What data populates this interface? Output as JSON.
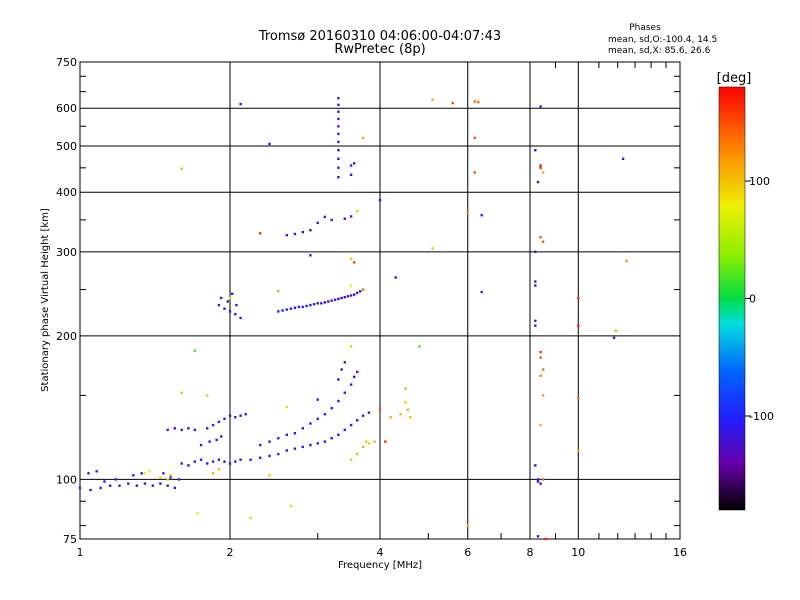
{
  "chart_data": {
    "type": "scatter",
    "title": "Tromsø 20160310 04:06:00-04:07:43",
    "subtitle": "RwPretec (8p)",
    "xlabel": "Frequency [MHz]",
    "ylabel": "Stationary phase Virtual Height [km]",
    "x_scale": "log",
    "y_scale": "log",
    "xlim": [
      1,
      16
    ],
    "ylim": [
      75,
      750
    ],
    "x_ticks": [
      1,
      2,
      4,
      6,
      8,
      10,
      16
    ],
    "y_ticks": [
      75,
      100,
      200,
      300,
      400,
      500,
      600,
      750
    ],
    "grid": true,
    "info": {
      "header": "Phases",
      "line1": "mean, sd,O:-100.4, 14.5",
      "line2": "mean, sd,X:  85.6, 26.6"
    },
    "colorbar": {
      "label": "[deg]",
      "range": [
        -180,
        180
      ],
      "ticks": [
        100,
        0,
        -100
      ]
    },
    "series": [
      {
        "values": [
          [
            1.0,
            96,
            -110
          ],
          [
            1.05,
            95,
            -110
          ],
          [
            1.1,
            96,
            -105
          ],
          [
            1.15,
            97,
            -110
          ],
          [
            1.2,
            97,
            -112
          ],
          [
            1.25,
            98,
            -108
          ],
          [
            1.3,
            97,
            -110
          ],
          [
            1.35,
            98,
            -105
          ],
          [
            1.4,
            97,
            -110
          ],
          [
            1.45,
            98,
            -108
          ],
          [
            1.5,
            97,
            -110
          ],
          [
            1.55,
            96,
            -112
          ],
          [
            1.04,
            103,
            -100
          ],
          [
            1.08,
            104,
            -95
          ],
          [
            1.12,
            99,
            -110
          ],
          [
            1.18,
            100,
            -105
          ],
          [
            1.28,
            102,
            -100
          ],
          [
            1.33,
            103,
            -105
          ],
          [
            1.47,
            103,
            -100
          ],
          [
            1.52,
            101,
            -110
          ],
          [
            1.58,
            100,
            -105
          ],
          [
            1.5,
            127,
            -105
          ],
          [
            1.55,
            128,
            -100
          ],
          [
            1.6,
            127,
            -110
          ],
          [
            1.65,
            128,
            -105
          ],
          [
            1.7,
            127,
            -108
          ],
          [
            1.6,
            108,
            -105
          ],
          [
            1.65,
            107,
            -110
          ],
          [
            1.7,
            109,
            -105
          ],
          [
            1.75,
            110,
            -108
          ],
          [
            1.8,
            108,
            -110
          ],
          [
            1.85,
            109,
            -105
          ],
          [
            1.9,
            110,
            -108
          ],
          [
            1.95,
            109,
            -110
          ],
          [
            2.0,
            108,
            -105
          ],
          [
            2.05,
            109,
            -110
          ],
          [
            2.1,
            110,
            -108
          ],
          [
            2.2,
            110,
            -105
          ],
          [
            2.3,
            111,
            -108
          ],
          [
            2.4,
            112,
            -110
          ],
          [
            2.5,
            113,
            -105
          ],
          [
            2.6,
            115,
            -110
          ],
          [
            2.7,
            116,
            -108
          ],
          [
            2.8,
            117,
            -105
          ],
          [
            2.9,
            118,
            -110
          ],
          [
            3.0,
            119,
            -108
          ],
          [
            3.1,
            120,
            -105
          ],
          [
            3.2,
            122,
            -110
          ],
          [
            3.3,
            124,
            -108
          ],
          [
            3.4,
            127,
            -105
          ],
          [
            3.5,
            130,
            -110
          ],
          [
            3.6,
            133,
            -108
          ],
          [
            3.7,
            136,
            -105
          ],
          [
            3.8,
            138,
            -110
          ],
          [
            1.8,
            128,
            -110
          ],
          [
            1.85,
            130,
            -108
          ],
          [
            1.9,
            132,
            -105
          ],
          [
            1.95,
            134,
            -110
          ],
          [
            2.0,
            136,
            -108
          ],
          [
            2.05,
            135,
            -105
          ],
          [
            2.1,
            136,
            -110
          ],
          [
            2.15,
            137,
            -108
          ],
          [
            1.75,
            118,
            -105
          ],
          [
            1.82,
            120,
            -110
          ],
          [
            1.88,
            121,
            -108
          ],
          [
            1.92,
            123,
            -105
          ],
          [
            2.3,
            118,
            -110
          ],
          [
            2.4,
            120,
            -108
          ],
          [
            2.5,
            122,
            -105
          ],
          [
            2.6,
            124,
            -110
          ],
          [
            2.7,
            125,
            -108
          ],
          [
            2.8,
            128,
            -105
          ],
          [
            2.9,
            131,
            -110
          ],
          [
            3.0,
            134,
            -108
          ],
          [
            3.1,
            137,
            -105
          ],
          [
            3.2,
            141,
            -110
          ],
          [
            3.3,
            146,
            -108
          ],
          [
            3.4,
            152,
            -105
          ],
          [
            3.5,
            158,
            -110
          ],
          [
            3.55,
            164,
            -108
          ],
          [
            3.6,
            168,
            -105
          ],
          [
            3.3,
            162,
            -110
          ],
          [
            3.35,
            170,
            -108
          ],
          [
            3.4,
            176,
            -105
          ],
          [
            3.0,
            147,
            -110
          ],
          [
            2.5,
            225,
            -95
          ],
          [
            2.55,
            226,
            -100
          ],
          [
            2.6,
            227,
            -90
          ],
          [
            2.65,
            228,
            -95
          ],
          [
            2.7,
            229,
            -100
          ],
          [
            2.75,
            230,
            -95
          ],
          [
            2.8,
            230,
            -90
          ],
          [
            2.85,
            231,
            -95
          ],
          [
            2.9,
            232,
            -100
          ],
          [
            2.95,
            233,
            -95
          ],
          [
            3.0,
            234,
            -130
          ],
          [
            3.05,
            234,
            -120
          ],
          [
            3.1,
            235,
            -125
          ],
          [
            3.15,
            236,
            -130
          ],
          [
            3.2,
            237,
            -120
          ],
          [
            3.25,
            238,
            -125
          ],
          [
            3.3,
            239,
            -130
          ],
          [
            3.35,
            240,
            -120
          ],
          [
            3.4,
            241,
            -125
          ],
          [
            3.45,
            242,
            -130
          ],
          [
            3.5,
            243,
            -120
          ],
          [
            3.55,
            244,
            -125
          ],
          [
            3.6,
            246,
            -130
          ],
          [
            3.65,
            248,
            -120
          ],
          [
            3.7,
            250,
            -125
          ],
          [
            1.9,
            232,
            -110
          ],
          [
            1.95,
            228,
            -105
          ],
          [
            2.0,
            225,
            -110
          ],
          [
            2.05,
            222,
            -108
          ],
          [
            2.1,
            218,
            -105
          ],
          [
            1.92,
            240,
            -110
          ],
          [
            2.02,
            245,
            -105
          ],
          [
            1.98,
            236,
            -108
          ],
          [
            2.06,
            232,
            -110
          ],
          [
            2.6,
            325,
            -110
          ],
          [
            2.7,
            327,
            -108
          ],
          [
            2.8,
            330,
            -105
          ],
          [
            2.9,
            333,
            -110
          ],
          [
            3.0,
            345,
            -108
          ],
          [
            3.1,
            355,
            -105
          ],
          [
            3.2,
            350,
            -110
          ],
          [
            3.4,
            352,
            -108
          ],
          [
            3.5,
            356,
            -105
          ],
          [
            3.3,
            430,
            -110
          ],
          [
            3.3,
            450,
            -108
          ],
          [
            3.3,
            470,
            -105
          ],
          [
            3.3,
            490,
            -110
          ],
          [
            3.3,
            510,
            -108
          ],
          [
            3.3,
            530,
            -105
          ],
          [
            3.3,
            550,
            -110
          ],
          [
            3.3,
            570,
            -108
          ],
          [
            3.3,
            590,
            -105
          ],
          [
            3.3,
            610,
            -110
          ],
          [
            3.3,
            630,
            -108
          ],
          [
            3.5,
            455,
            -105
          ],
          [
            3.55,
            460,
            -110
          ],
          [
            3.5,
            435,
            -108
          ],
          [
            2.1,
            612,
            -110
          ],
          [
            2.4,
            505,
            -105
          ],
          [
            2.9,
            295,
            -110
          ],
          [
            4.0,
            385,
            -110
          ],
          [
            4.3,
            265,
            -110
          ],
          [
            8.4,
            605,
            -110
          ],
          [
            8.2,
            490,
            -100
          ],
          [
            8.3,
            420,
            -110
          ],
          [
            8.2,
            300,
            -110
          ],
          [
            8.2,
            260,
            -110
          ],
          [
            8.2,
            255,
            -110
          ],
          [
            8.2,
            215,
            -110
          ],
          [
            8.2,
            210,
            -110
          ],
          [
            8.2,
            107,
            -110
          ],
          [
            8.3,
            100,
            -110
          ],
          [
            8.4,
            98,
            -110
          ],
          [
            8.3,
            99,
            -110
          ],
          [
            8.3,
            76,
            -110
          ],
          [
            12.3,
            470,
            -110
          ],
          [
            11.8,
            198,
            -110
          ],
          [
            6.4,
            358,
            -110
          ],
          [
            6.4,
            247,
            -110
          ]
        ]
      },
      {
        "values": [
          [
            1.35,
            103,
            80
          ],
          [
            1.38,
            104,
            75
          ],
          [
            1.45,
            101,
            90
          ],
          [
            1.5,
            100,
            95
          ],
          [
            1.52,
            102,
            100
          ],
          [
            1.6,
            448,
            105
          ],
          [
            1.6,
            152,
            100
          ],
          [
            1.7,
            186,
            20
          ],
          [
            1.72,
            85,
            85
          ],
          [
            1.8,
            150,
            95
          ],
          [
            1.85,
            103,
            110
          ],
          [
            1.9,
            105,
            100
          ],
          [
            2.0,
            240,
            90
          ],
          [
            2.2,
            83,
            95
          ],
          [
            2.4,
            102,
            100
          ],
          [
            2.5,
            248,
            110
          ],
          [
            2.6,
            142,
            90
          ],
          [
            2.65,
            88,
            85
          ],
          [
            3.5,
            290,
            100
          ],
          [
            3.5,
            255,
            80
          ],
          [
            3.7,
            250,
            120
          ],
          [
            3.6,
            365,
            95
          ],
          [
            3.7,
            520,
            110
          ],
          [
            3.5,
            190,
            100
          ],
          [
            3.5,
            110,
            95
          ],
          [
            3.6,
            113,
            100
          ],
          [
            3.7,
            117,
            110
          ],
          [
            3.75,
            120,
            95
          ],
          [
            3.8,
            119,
            100
          ],
          [
            3.9,
            120,
            105
          ],
          [
            4.2,
            135,
            110
          ],
          [
            4.4,
            137,
            100
          ],
          [
            4.5,
            145,
            95
          ],
          [
            4.55,
            140,
            110
          ],
          [
            4.6,
            135,
            105
          ],
          [
            4.5,
            155,
            115
          ],
          [
            4.8,
            190,
            20
          ],
          [
            5.1,
            305,
            100
          ],
          [
            5.1,
            625,
            110
          ],
          [
            5.6,
            615,
            150
          ],
          [
            6.0,
            362,
            125
          ],
          [
            6.2,
            620,
            140
          ],
          [
            6.3,
            618,
            135
          ],
          [
            6.2,
            520,
            150
          ],
          [
            6.2,
            440,
            150
          ],
          [
            6.0,
            80,
            100
          ],
          [
            8.4,
            455,
            170
          ],
          [
            8.4,
            450,
            160
          ],
          [
            8.5,
            440,
            110
          ],
          [
            8.4,
            322,
            150
          ],
          [
            8.5,
            315,
            145
          ],
          [
            8.4,
            185,
            160
          ],
          [
            8.4,
            180,
            145
          ],
          [
            8.5,
            170,
            135
          ],
          [
            8.4,
            165,
            130
          ],
          [
            8.5,
            150,
            120
          ],
          [
            8.4,
            130,
            110
          ],
          [
            8.5,
            100,
            140
          ],
          [
            8.6,
            75,
            170
          ],
          [
            10.0,
            240,
            160
          ],
          [
            10.0,
            210,
            170
          ],
          [
            10.0,
            148,
            135
          ],
          [
            10.0,
            115,
            110
          ],
          [
            11.9,
            205,
            110
          ],
          [
            12.5,
            287,
            125
          ],
          [
            4.0,
            140,
            150
          ],
          [
            4.1,
            120,
            160
          ],
          [
            3.55,
            285,
            155
          ],
          [
            2.3,
            328,
            160
          ]
        ]
      }
    ]
  }
}
